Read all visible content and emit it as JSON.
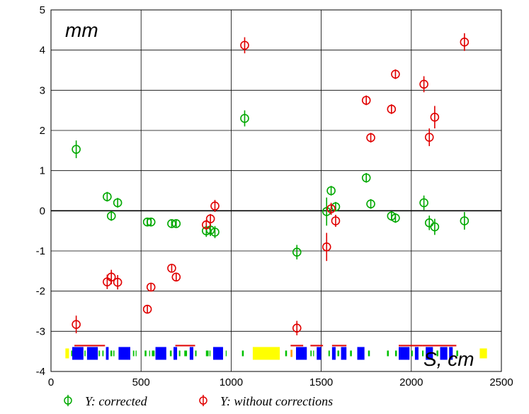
{
  "chart_data": {
    "type": "scatter",
    "xlabel": "S, cm",
    "ylabel": "mm",
    "xlim": [
      0,
      2500
    ],
    "ylim": [
      -4,
      5
    ],
    "x_ticks": [
      0,
      500,
      1000,
      1500,
      2000,
      2500
    ],
    "y_ticks": [
      -4,
      -3,
      -2,
      -1,
      0,
      1,
      2,
      3,
      4,
      5
    ],
    "grid": true,
    "legend_position": "bottom",
    "series": [
      {
        "name": "Y: corrected",
        "color": "#00a800",
        "marker": "circle-with-errorbar",
        "points": [
          {
            "x": 140,
            "y": 1.53,
            "err": 0.22
          },
          {
            "x": 312,
            "y": 0.35,
            "err": 0.12
          },
          {
            "x": 335,
            "y": -0.13,
            "err": 0.12
          },
          {
            "x": 370,
            "y": 0.2,
            "err": 0.12
          },
          {
            "x": 535,
            "y": -0.28,
            "err": 0.1
          },
          {
            "x": 555,
            "y": -0.28,
            "err": 0.1
          },
          {
            "x": 670,
            "y": -0.32,
            "err": 0.1
          },
          {
            "x": 695,
            "y": -0.32,
            "err": 0.1
          },
          {
            "x": 862,
            "y": -0.5,
            "err": 0.15
          },
          {
            "x": 885,
            "y": -0.48,
            "err": 0.15
          },
          {
            "x": 910,
            "y": -0.53,
            "err": 0.15
          },
          {
            "x": 1075,
            "y": 2.3,
            "err": 0.2
          },
          {
            "x": 1365,
            "y": -1.03,
            "err": 0.18
          },
          {
            "x": 1530,
            "y": -0.02,
            "err": 0.35
          },
          {
            "x": 1555,
            "y": 0.5,
            "err": 0.12
          },
          {
            "x": 1580,
            "y": 0.1,
            "err": 0.12
          },
          {
            "x": 1750,
            "y": 0.82,
            "err": 0.12
          },
          {
            "x": 1775,
            "y": 0.17,
            "err": 0.12
          },
          {
            "x": 1890,
            "y": -0.13,
            "err": 0.12
          },
          {
            "x": 1912,
            "y": -0.18,
            "err": 0.12
          },
          {
            "x": 2070,
            "y": 0.2,
            "err": 0.18
          },
          {
            "x": 2100,
            "y": -0.3,
            "err": 0.18
          },
          {
            "x": 2130,
            "y": -0.4,
            "err": 0.2
          },
          {
            "x": 2295,
            "y": -0.25,
            "err": 0.22
          }
        ]
      },
      {
        "name": "Y: without corrections",
        "color": "#e00000",
        "marker": "circle-with-errorbar",
        "points": [
          {
            "x": 140,
            "y": -2.83,
            "err": 0.22
          },
          {
            "x": 312,
            "y": -1.77,
            "err": 0.18
          },
          {
            "x": 335,
            "y": -1.65,
            "err": 0.18
          },
          {
            "x": 370,
            "y": -1.78,
            "err": 0.18
          },
          {
            "x": 535,
            "y": -2.45,
            "err": 0.1
          },
          {
            "x": 555,
            "y": -1.9,
            "err": 0.1
          },
          {
            "x": 670,
            "y": -1.43,
            "err": 0.1
          },
          {
            "x": 695,
            "y": -1.65,
            "err": 0.1
          },
          {
            "x": 862,
            "y": -0.35,
            "err": 0.12
          },
          {
            "x": 885,
            "y": -0.2,
            "err": 0.12
          },
          {
            "x": 910,
            "y": 0.12,
            "err": 0.15
          },
          {
            "x": 1075,
            "y": 4.12,
            "err": 0.2
          },
          {
            "x": 1365,
            "y": -2.92,
            "err": 0.18
          },
          {
            "x": 1530,
            "y": -0.9,
            "err": 0.35
          },
          {
            "x": 1555,
            "y": 0.05,
            "err": 0.15
          },
          {
            "x": 1580,
            "y": -0.25,
            "err": 0.15
          },
          {
            "x": 1750,
            "y": 2.75,
            "err": 0.12
          },
          {
            "x": 1775,
            "y": 1.82,
            "err": 0.12
          },
          {
            "x": 1890,
            "y": 2.53,
            "err": 0.12
          },
          {
            "x": 1912,
            "y": 3.4,
            "err": 0.12
          },
          {
            "x": 2070,
            "y": 3.15,
            "err": 0.2
          },
          {
            "x": 2100,
            "y": 1.83,
            "err": 0.22
          },
          {
            "x": 2130,
            "y": 2.33,
            "err": 0.28
          },
          {
            "x": 2295,
            "y": 4.2,
            "err": 0.22
          }
        ]
      }
    ]
  }
}
